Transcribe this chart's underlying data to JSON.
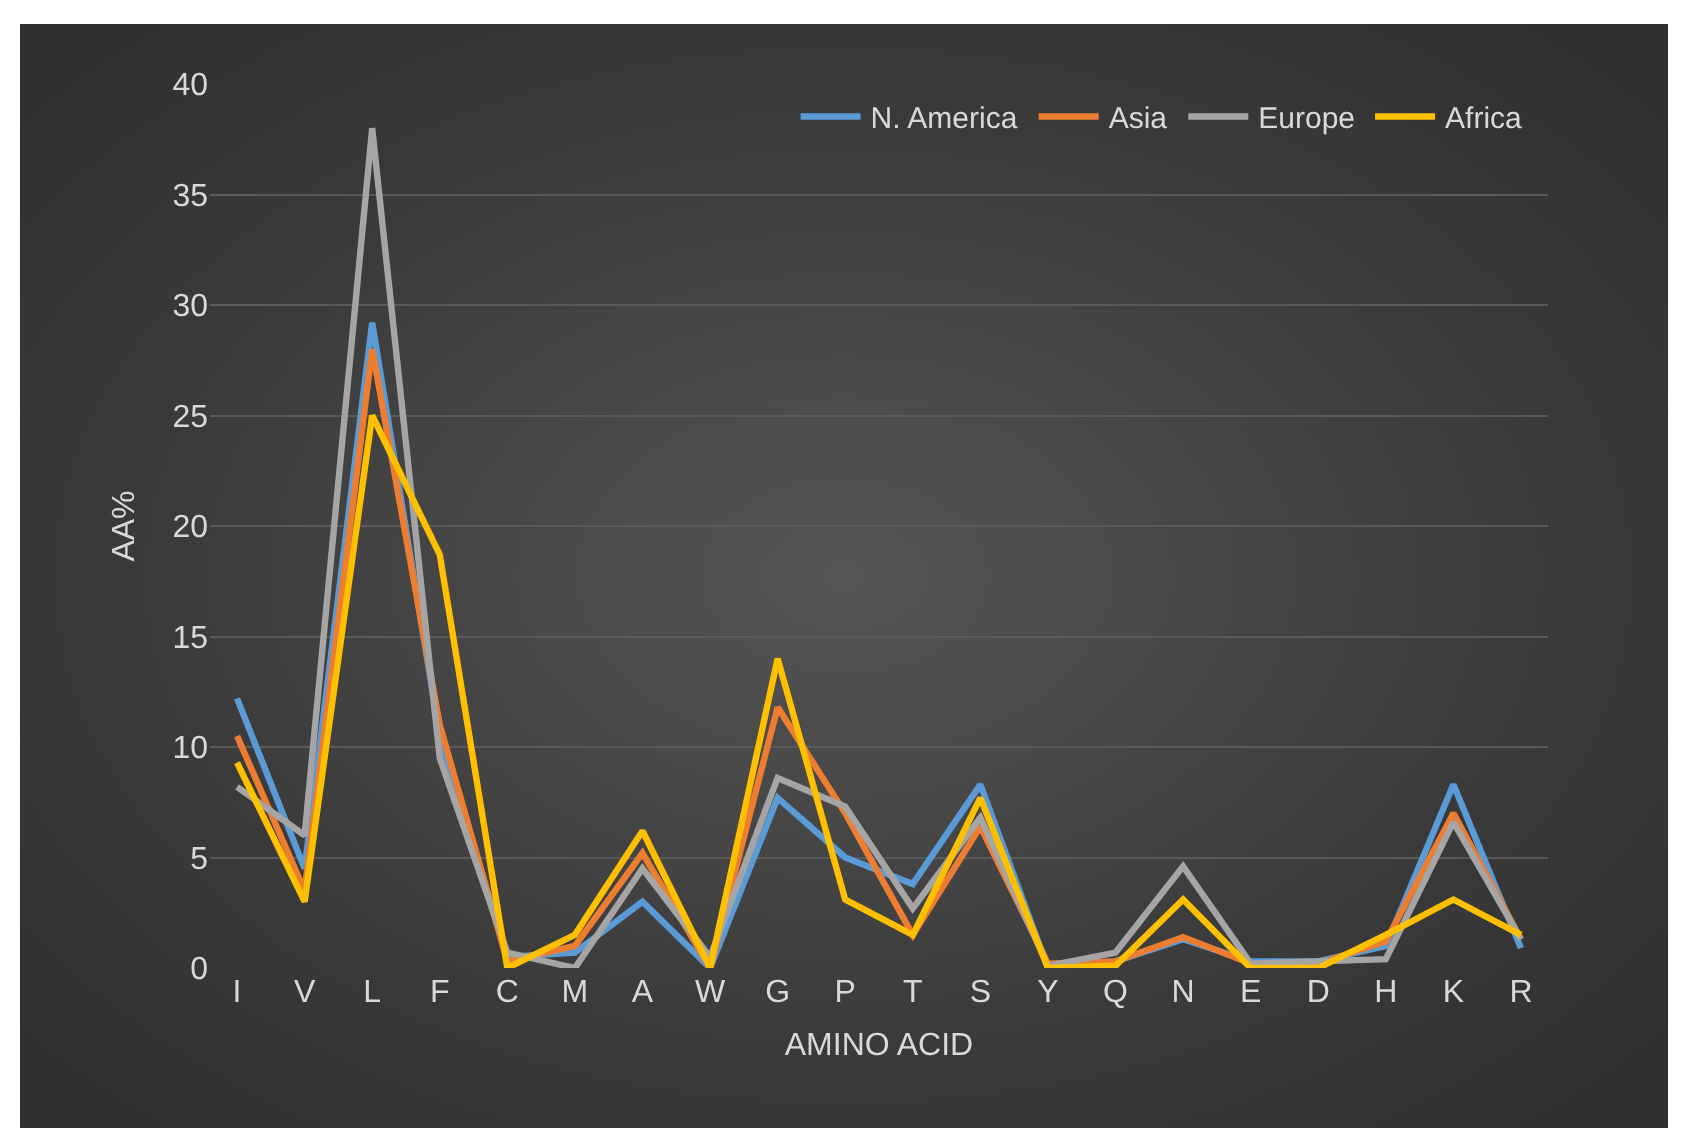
{
  "chart_data": {
    "type": "line",
    "xlabel": "AMINO ACID",
    "ylabel": "AA%",
    "categories": [
      "I",
      "V",
      "L",
      "F",
      "C",
      "M",
      "A",
      "W",
      "G",
      "P",
      "T",
      "S",
      "Y",
      "Q",
      "N",
      "E",
      "D",
      "H",
      "K",
      "R"
    ],
    "series": [
      {
        "name": "N. America",
        "color": "#5b9bd5",
        "values": [
          12.2,
          4.5,
          29.2,
          10.5,
          0.5,
          0.7,
          3,
          0,
          7.7,
          5,
          3.8,
          8.3,
          0,
          0.3,
          1.3,
          0.3,
          0.3,
          1,
          8.3,
          0.9
        ]
      },
      {
        "name": "Asia",
        "color": "#ed7d31",
        "values": [
          10.5,
          3.5,
          28,
          11,
          0.3,
          1,
          5.2,
          0,
          11.8,
          7,
          1.5,
          6.4,
          0.2,
          0.3,
          1.4,
          0.2,
          0.2,
          1.2,
          7,
          1.3
        ]
      },
      {
        "name": "Europe",
        "color": "#a5a5a5",
        "values": [
          8.2,
          6,
          38,
          9.5,
          0.7,
          0,
          4.5,
          0.5,
          8.6,
          7.3,
          2.7,
          6.8,
          0.1,
          0.7,
          4.6,
          0.2,
          0.3,
          0.4,
          6.6,
          1.3
        ]
      },
      {
        "name": "Africa",
        "color": "#ffc000",
        "values": [
          9.3,
          3,
          25,
          18.7,
          0,
          1.5,
          6.2,
          0,
          14,
          3.1,
          1.5,
          7.7,
          0,
          0.1,
          3.1,
          0,
          0,
          1.5,
          3.1,
          1.5
        ]
      }
    ],
    "ylim": [
      0,
      40
    ],
    "yticks": [
      0,
      5,
      10,
      15,
      20,
      25,
      30,
      35,
      40
    ],
    "grid": "y",
    "legend": "top right",
    "marker": "none",
    "line_style": "solid"
  }
}
